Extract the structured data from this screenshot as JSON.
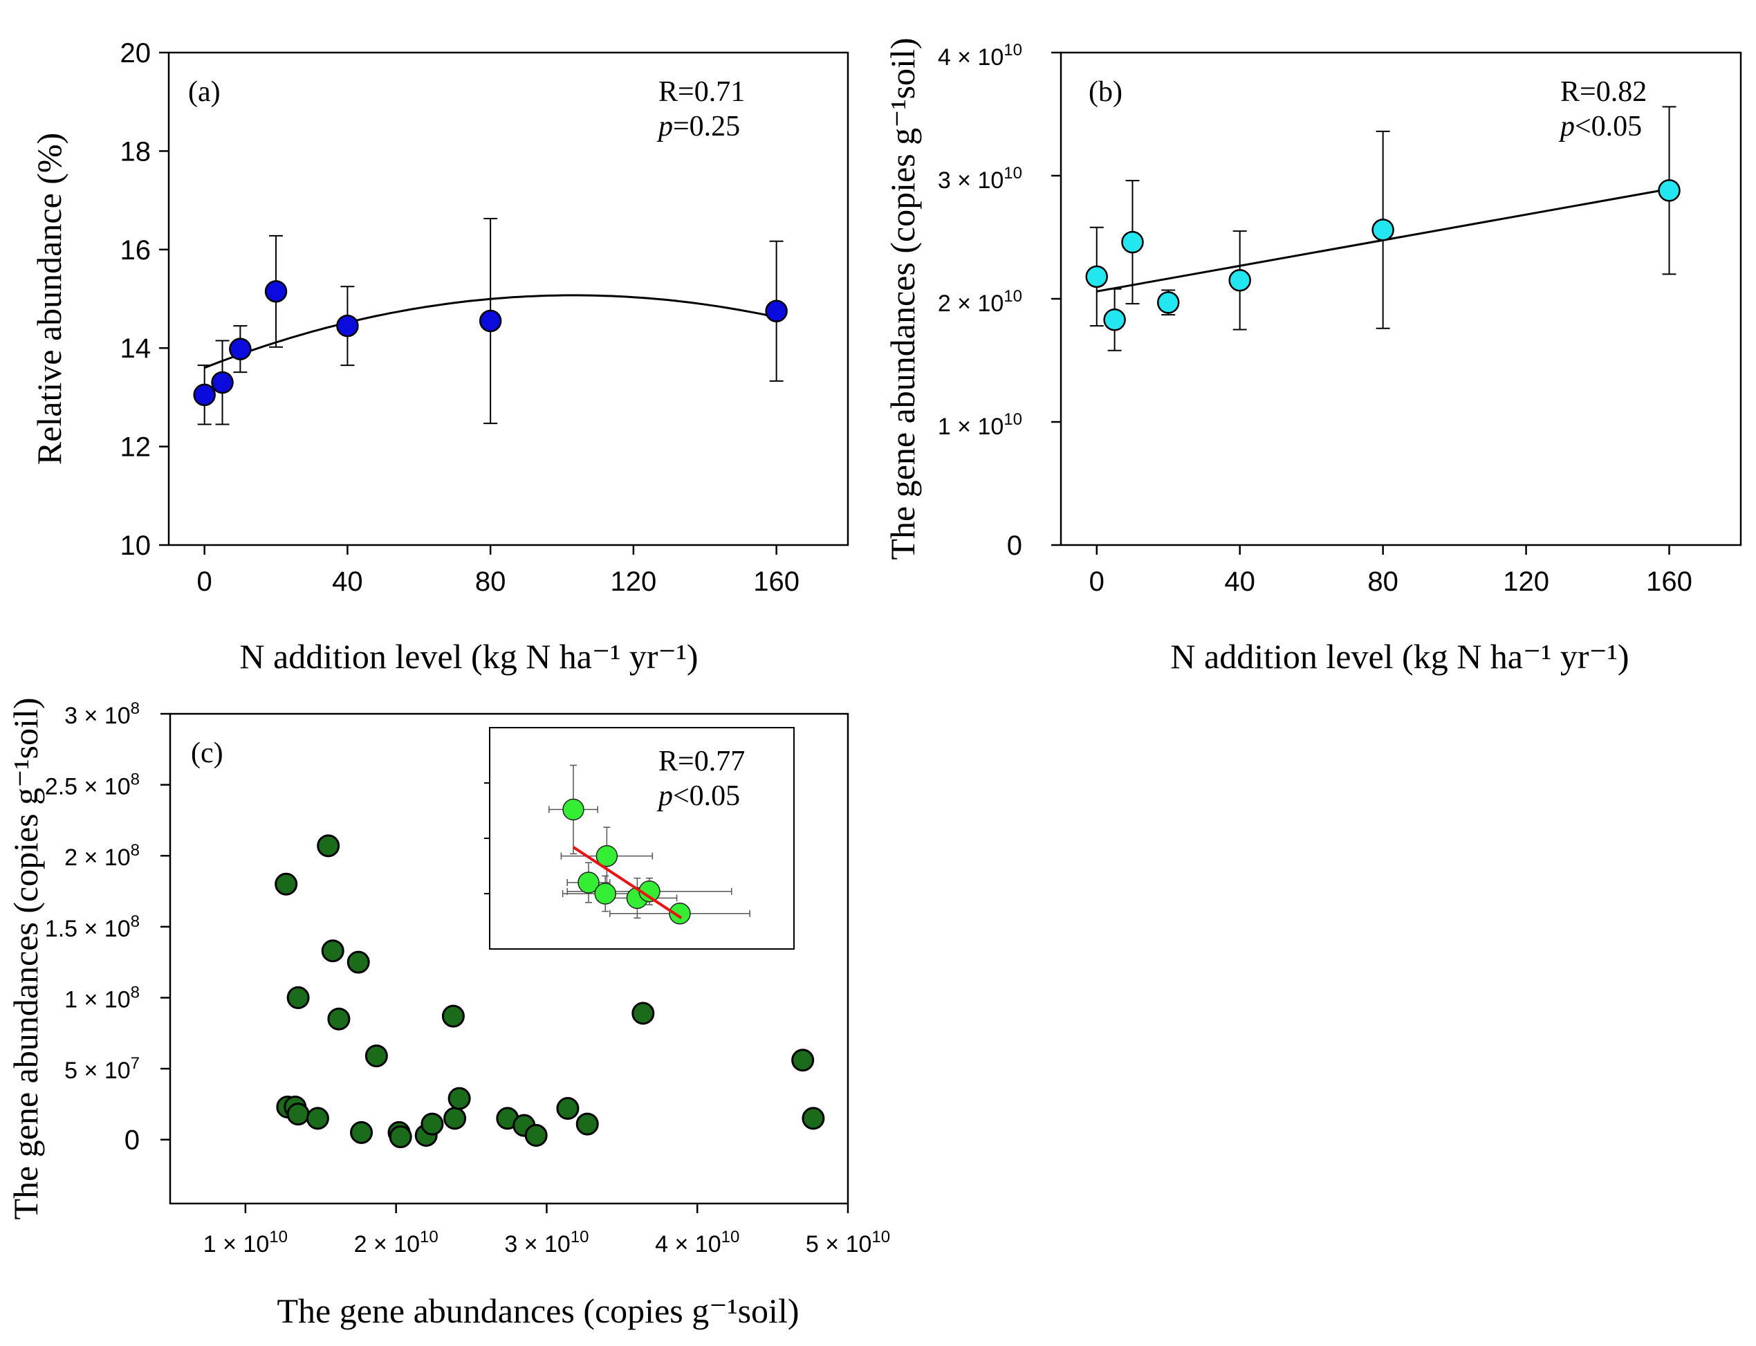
{
  "chart_data": [
    {
      "panel": "(a)",
      "type": "scatter",
      "xlabel": "N addition level (kg N ha⁻¹ yr⁻¹)",
      "ylabel": "Relative abundance (%)",
      "xlim": [
        -10,
        180
      ],
      "ylim": [
        10,
        20
      ],
      "xticks": [
        0,
        40,
        80,
        120,
        160
      ],
      "yticks": [
        10,
        12,
        14,
        16,
        18,
        20
      ],
      "xtick_labels": [
        "0",
        "40",
        "80",
        "120",
        "160"
      ],
      "ytick_labels": [
        "10",
        "12",
        "14",
        "16",
        "18",
        "20"
      ],
      "stats": {
        "r": "R=0.71",
        "p_symbol": "p",
        "p_value": "=0.25"
      },
      "marker_color": "#0b0bdd",
      "points": [
        {
          "x": 0,
          "y": 13.05,
          "err": 0.6
        },
        {
          "x": 5,
          "y": 13.3,
          "err": 0.85
        },
        {
          "x": 10,
          "y": 13.98,
          "err": 0.47
        },
        {
          "x": 20,
          "y": 15.15,
          "err": 1.13
        },
        {
          "x": 40,
          "y": 14.45,
          "err": 0.8
        },
        {
          "x": 80,
          "y": 14.55,
          "err": 2.08
        },
        {
          "x": 160,
          "y": 14.75,
          "err": 1.42
        }
      ],
      "fit": {
        "kind": "quadratic",
        "coef": [
          13.6,
          0.0285,
          -0.000138
        ],
        "range": [
          0,
          160
        ]
      }
    },
    {
      "panel": "(b)",
      "type": "scatter",
      "xlabel": "N addition level (kg N ha⁻¹ yr⁻¹)",
      "ylabel": "The gene abundances  (copies g⁻¹soil)",
      "xlim": [
        -10,
        180
      ],
      "ylim": [
        0,
        4
      ],
      "y_scale_note": "values in units of 10^10",
      "xticks": [
        0,
        40,
        80,
        120,
        160
      ],
      "yticks": [
        0,
        1,
        2,
        3,
        4
      ],
      "xtick_labels": [
        "0",
        "40",
        "80",
        "120",
        "160"
      ],
      "ytick_labels": [
        "0",
        "1 × 10",
        "2 × 10",
        "3 × 10",
        "4 × 10"
      ],
      "ytick_exp": "10",
      "stats": {
        "r": "R=0.82",
        "p_symbol": "p",
        "p_value": "<0.05"
      },
      "marker_color": "#22e6f0",
      "points": [
        {
          "x": 0,
          "y": 2.18,
          "err": 0.4
        },
        {
          "x": 5,
          "y": 1.83,
          "err": 0.25
        },
        {
          "x": 10,
          "y": 2.46,
          "err": 0.5
        },
        {
          "x": 20,
          "y": 1.97,
          "err": 0.1
        },
        {
          "x": 40,
          "y": 2.15,
          "err": 0.4
        },
        {
          "x": 80,
          "y": 2.56,
          "err": 0.8
        },
        {
          "x": 160,
          "y": 2.88,
          "err": 0.68
        }
      ],
      "fit": {
        "kind": "linear",
        "coef": [
          2.06,
          0.0052
        ],
        "range": [
          0,
          160
        ]
      }
    },
    {
      "panel": "(c)",
      "type": "scatter",
      "xlabel": "The gene abundances (copies g⁻¹soil)",
      "ylabel": "The gene abundances (copies g⁻¹soil)",
      "x_scale_note": "values in units of 10^10",
      "y_scale_note": "values in units of 10^8",
      "xlim": [
        0.5,
        5
      ],
      "ylim": [
        -0.45,
        3
      ],
      "xticks": [
        1,
        2,
        3,
        4,
        5
      ],
      "yticks": [
        0,
        0.5,
        1,
        1.5,
        2,
        2.5,
        3
      ],
      "xtick_labels": [
        "1 × 10",
        "2 × 10",
        "3 × 10",
        "4 × 10",
        "5 × 10"
      ],
      "xtick_exp": "10",
      "ytick_labels": [
        "0",
        "5 × 10",
        "1 × 10",
        "1.5 × 10",
        "2 × 10",
        "2.5 × 10",
        "3 × 10"
      ],
      "ytick_exps": [
        "",
        "7",
        "8",
        "8",
        "8",
        "8",
        "8"
      ],
      "marker_color": "#1a6b1a",
      "points": [
        {
          "x": 1.27,
          "y": 1.8
        },
        {
          "x": 1.55,
          "y": 2.07
        },
        {
          "x": 1.58,
          "y": 1.33
        },
        {
          "x": 1.75,
          "y": 1.25
        },
        {
          "x": 1.35,
          "y": 1.0
        },
        {
          "x": 1.62,
          "y": 0.85
        },
        {
          "x": 1.87,
          "y": 0.59
        },
        {
          "x": 2.38,
          "y": 0.87
        },
        {
          "x": 3.64,
          "y": 0.89
        },
        {
          "x": 4.7,
          "y": 0.56
        },
        {
          "x": 4.77,
          "y": 0.15
        },
        {
          "x": 1.28,
          "y": 0.23
        },
        {
          "x": 1.33,
          "y": 0.23
        },
        {
          "x": 1.35,
          "y": 0.18
        },
        {
          "x": 1.48,
          "y": 0.15
        },
        {
          "x": 1.77,
          "y": 0.05
        },
        {
          "x": 2.02,
          "y": 0.05
        },
        {
          "x": 2.03,
          "y": 0.02
        },
        {
          "x": 2.2,
          "y": 0.03
        },
        {
          "x": 2.24,
          "y": 0.11
        },
        {
          "x": 2.39,
          "y": 0.15
        },
        {
          "x": 2.42,
          "y": 0.29
        },
        {
          "x": 2.74,
          "y": 0.15
        },
        {
          "x": 2.85,
          "y": 0.1
        },
        {
          "x": 2.93,
          "y": 0.03
        },
        {
          "x": 3.14,
          "y": 0.22
        },
        {
          "x": 3.27,
          "y": 0.11
        }
      ],
      "inset": {
        "stats": {
          "r": "R=0.77",
          "p_symbol": "p",
          "p_value": "<0.05"
        },
        "marker_color": "#33ee33",
        "fit_color": "#ee1111",
        "xlim": [
          0,
          10
        ],
        "ylim": [
          0,
          10
        ],
        "points": [
          {
            "x": 2.75,
            "y": 6.3,
            "xerr": 0.8,
            "yerr": 2.0
          },
          {
            "x": 3.25,
            "y": 3.0,
            "xerr": 0.7,
            "yerr": 0.9
          },
          {
            "x": 3.85,
            "y": 4.2,
            "xerr": 1.5,
            "yerr": 1.3
          },
          {
            "x": 3.8,
            "y": 2.5,
            "xerr": 1.4,
            "yerr": 0.8
          },
          {
            "x": 4.85,
            "y": 2.3,
            "xerr": 1.3,
            "yerr": 0.9
          },
          {
            "x": 5.25,
            "y": 2.6,
            "xerr": 2.7,
            "yerr": 0.6
          },
          {
            "x": 6.25,
            "y": 1.6,
            "xerr": 2.3,
            "yerr": 0.4
          }
        ],
        "fit": {
          "kind": "linear",
          "from": [
            2.75,
            4.6
          ],
          "to": [
            6.3,
            1.4
          ]
        }
      }
    }
  ]
}
